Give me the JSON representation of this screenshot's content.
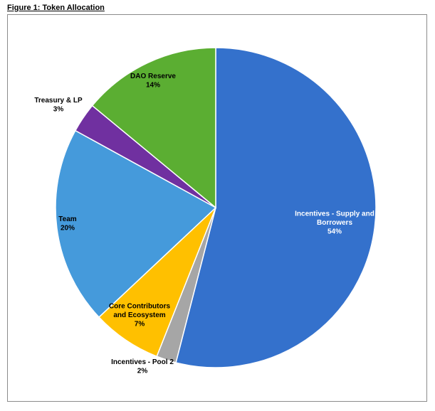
{
  "figure_caption": "Figure 1: Token Allocation",
  "chart_data": {
    "type": "pie",
    "title": "",
    "start_angle_deg": 0,
    "direction": "clockwise",
    "slices": [
      {
        "label_lines": [
          "Incentives - Supply and",
          "Borrowers"
        ],
        "label": "Incentives - Supply and Borrowers",
        "value": 54,
        "value_text": "54%",
        "color": "#3471CC",
        "label_color": "#ffffff"
      },
      {
        "label_lines": [
          "Incentives - Pool 2"
        ],
        "label": "Incentives - Pool 2",
        "value": 2,
        "value_text": "2%",
        "color": "#A6A6A6",
        "label_color": "#000000"
      },
      {
        "label_lines": [
          "Core Contributors",
          "and Ecosystem"
        ],
        "label": "Core Contributors and Ecosystem",
        "value": 7,
        "value_text": "7%",
        "color": "#FFC000",
        "label_color": "#000000"
      },
      {
        "label_lines": [
          "Team"
        ],
        "label": "Team",
        "value": 20,
        "value_text": "20%",
        "color": "#459ADB",
        "label_color": "#000000"
      },
      {
        "label_lines": [
          "Treasury & LP"
        ],
        "label": "Treasury & LP",
        "value": 3,
        "value_text": "3%",
        "color": "#7030A0",
        "label_color": "#000000"
      },
      {
        "label_lines": [
          "DAO Reserve"
        ],
        "label": "DAO Reserve",
        "value": 14,
        "value_text": "14%",
        "color": "#5BAE32",
        "label_color": "#000000"
      }
    ]
  }
}
